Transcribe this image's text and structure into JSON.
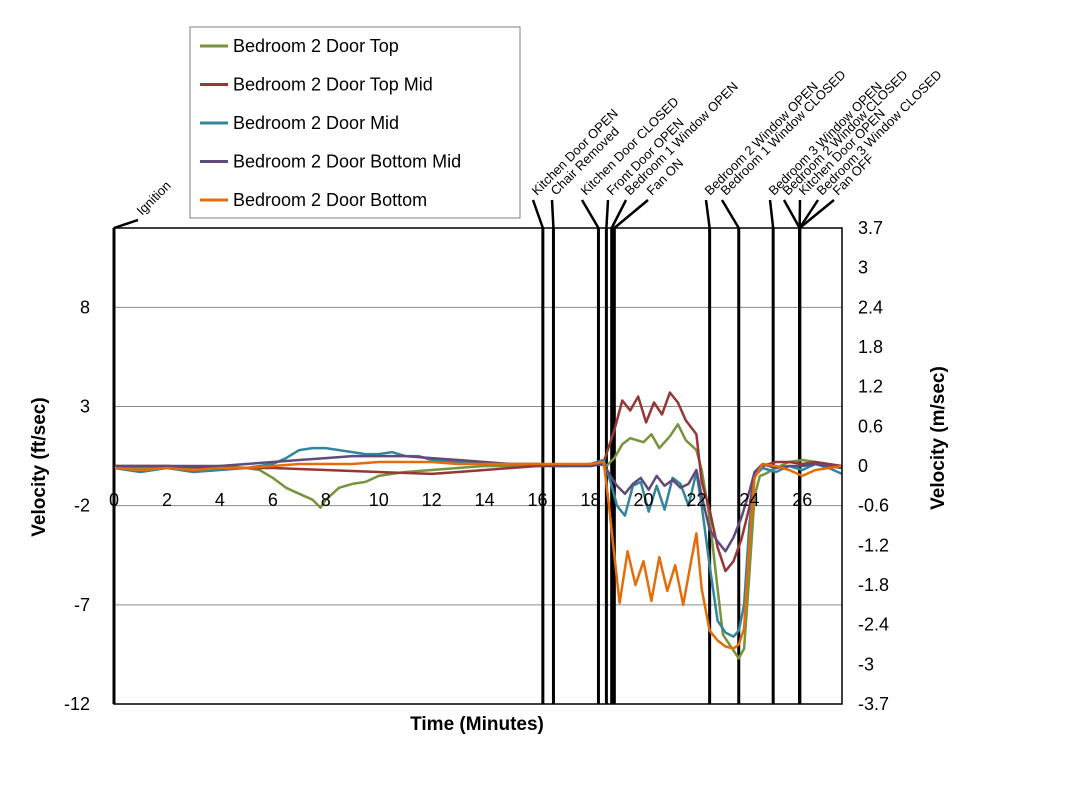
{
  "chart_data": {
    "type": "line",
    "title": "",
    "xlabel": "Time (Minutes)",
    "ylabel_left": "Velocity (ft/sec)",
    "ylabel_right": "Velocity (m/sec)",
    "xlim": [
      0,
      27.5
    ],
    "ylim_left": [
      -12,
      12
    ],
    "ylim_right": [
      -3.7,
      3.7
    ],
    "x_ticks": [
      0,
      2,
      4,
      6,
      8,
      10,
      12,
      14,
      16,
      18,
      20,
      22,
      24,
      26
    ],
    "y_ticks_left": [
      -12,
      -7,
      -2,
      3,
      8
    ],
    "y_ticks_right": [
      "3.7",
      "3",
      "2.4",
      "1.8",
      "1.2",
      "0.6",
      "0",
      "-0.6",
      "-1.2",
      "-1.8",
      "-2.4",
      "-3",
      "-3.7"
    ],
    "grid": "horizontal",
    "legend_position": "top-left",
    "events": [
      {
        "time": 0,
        "label": "Ignition"
      },
      {
        "time": 16.2,
        "label": "Kitchen Door OPEN"
      },
      {
        "time": 16.6,
        "label": "Chair Removed"
      },
      {
        "time": 18.3,
        "label": "Kitchen Door CLOSED"
      },
      {
        "time": 18.6,
        "label": "Front Door OPEN"
      },
      {
        "time": 18.8,
        "label": "Bedroom 1 Window OPEN"
      },
      {
        "time": 18.9,
        "label": "Fan ON"
      },
      {
        "time": 22.5,
        "label": "Bedroom 2 Window OPEN"
      },
      {
        "time": 23.6,
        "label": "Bedroom 1 Window CLOSED"
      },
      {
        "time": 24.9,
        "label": "Bedroom 3 Window OPEN"
      },
      {
        "time": 25.9,
        "label": "Bedroom 2 Window CLOSED"
      },
      {
        "time": 25.9,
        "label": "Kitchen Door OPEN"
      },
      {
        "time": 25.9,
        "label": "Bedroom 3 Window CLOSED"
      },
      {
        "time": 25.9,
        "label": "Fan OFF"
      }
    ],
    "series": [
      {
        "name": "Bedroom 2 Door Top",
        "color": "#77933c",
        "points": [
          [
            0,
            0
          ],
          [
            1,
            -0.1
          ],
          [
            2,
            0
          ],
          [
            3,
            -0.1
          ],
          [
            4,
            0
          ],
          [
            5,
            -0.1
          ],
          [
            5.5,
            -0.2
          ],
          [
            6,
            -0.6
          ],
          [
            6.5,
            -1.1
          ],
          [
            7,
            -1.4
          ],
          [
            7.5,
            -1.7
          ],
          [
            7.8,
            -2.1
          ],
          [
            8,
            -1.7
          ],
          [
            8.5,
            -1.1
          ],
          [
            9,
            -0.9
          ],
          [
            9.5,
            -0.8
          ],
          [
            10,
            -0.5
          ],
          [
            10.5,
            -0.4
          ],
          [
            11,
            -0.3
          ],
          [
            12,
            -0.2
          ],
          [
            13,
            -0.1
          ],
          [
            14,
            0
          ],
          [
            15,
            0
          ],
          [
            16,
            0
          ],
          [
            17,
            0
          ],
          [
            18,
            0
          ],
          [
            18.3,
            0.1
          ],
          [
            18.6,
            0
          ],
          [
            18.9,
            0.4
          ],
          [
            19.2,
            1.1
          ],
          [
            19.5,
            1.4
          ],
          [
            20,
            1.2
          ],
          [
            20.3,
            1.6
          ],
          [
            20.6,
            0.9
          ],
          [
            21,
            1.5
          ],
          [
            21.3,
            2.1
          ],
          [
            21.6,
            1.3
          ],
          [
            22,
            0.8
          ],
          [
            22.2,
            -0.2
          ],
          [
            22.5,
            -2.6
          ],
          [
            22.7,
            -5.0
          ],
          [
            23.0,
            -8.5
          ],
          [
            23.4,
            -9.3
          ],
          [
            23.6,
            -9.7
          ],
          [
            23.8,
            -9.2
          ],
          [
            24.0,
            -5.5
          ],
          [
            24.2,
            -1.5
          ],
          [
            24.4,
            -0.5
          ],
          [
            24.6,
            -0.4
          ],
          [
            25,
            -0.1
          ],
          [
            25.5,
            0.2
          ],
          [
            26,
            0.3
          ],
          [
            26.5,
            0.2
          ],
          [
            27,
            0
          ],
          [
            27.5,
            -0.1
          ]
        ]
      },
      {
        "name": "Bedroom 2 Door Top Mid",
        "color": "#953735",
        "points": [
          [
            0,
            0
          ],
          [
            2,
            0
          ],
          [
            4,
            -0.1
          ],
          [
            6,
            -0.1
          ],
          [
            8,
            -0.2
          ],
          [
            10,
            -0.3
          ],
          [
            12,
            -0.4
          ],
          [
            13,
            -0.3
          ],
          [
            14,
            -0.2
          ],
          [
            15,
            -0.1
          ],
          [
            16,
            0
          ],
          [
            17,
            0
          ],
          [
            18,
            0.1
          ],
          [
            18.5,
            0.2
          ],
          [
            18.9,
            1.8
          ],
          [
            19.2,
            3.3
          ],
          [
            19.5,
            2.8
          ],
          [
            19.8,
            3.5
          ],
          [
            20.1,
            2.2
          ],
          [
            20.4,
            3.2
          ],
          [
            20.7,
            2.6
          ],
          [
            21,
            3.7
          ],
          [
            21.3,
            3.2
          ],
          [
            21.6,
            2.3
          ],
          [
            22,
            1.6
          ],
          [
            22.2,
            -0.8
          ],
          [
            22.5,
            -2.2
          ],
          [
            22.8,
            -4.1
          ],
          [
            23.1,
            -5.3
          ],
          [
            23.4,
            -4.8
          ],
          [
            23.7,
            -3.7
          ],
          [
            24,
            -2.1
          ],
          [
            24.2,
            -0.5
          ],
          [
            24.5,
            0
          ],
          [
            25,
            0.2
          ],
          [
            25.5,
            0.2
          ],
          [
            26,
            0.1
          ],
          [
            26.5,
            0.2
          ],
          [
            27,
            0.1
          ],
          [
            27.5,
            0
          ]
        ]
      },
      {
        "name": "Bedroom 2 Door Mid",
        "color": "#31859c",
        "points": [
          [
            0,
            -0.1
          ],
          [
            1,
            -0.3
          ],
          [
            2,
            -0.1
          ],
          [
            3,
            -0.3
          ],
          [
            4,
            -0.2
          ],
          [
            5,
            -0.1
          ],
          [
            6,
            0.1
          ],
          [
            6.5,
            0.4
          ],
          [
            7,
            0.8
          ],
          [
            7.5,
            0.9
          ],
          [
            8,
            0.9
          ],
          [
            8.5,
            0.8
          ],
          [
            9,
            0.7
          ],
          [
            9.5,
            0.6
          ],
          [
            10,
            0.6
          ],
          [
            10.5,
            0.7
          ],
          [
            11,
            0.5
          ],
          [
            11.5,
            0.5
          ],
          [
            12,
            0.3
          ],
          [
            13,
            0.2
          ],
          [
            14,
            0.1
          ],
          [
            15,
            0.1
          ],
          [
            16,
            0.1
          ],
          [
            17,
            0
          ],
          [
            18,
            0.1
          ],
          [
            18.5,
            0.3
          ],
          [
            18.8,
            -1.0
          ],
          [
            19,
            -2.0
          ],
          [
            19.3,
            -2.5
          ],
          [
            19.6,
            -1.0
          ],
          [
            19.9,
            -0.8
          ],
          [
            20.2,
            -2.3
          ],
          [
            20.5,
            -1.0
          ],
          [
            20.8,
            -2.2
          ],
          [
            21.1,
            -0.6
          ],
          [
            21.4,
            -0.9
          ],
          [
            21.7,
            -2.0
          ],
          [
            22,
            -0.3
          ],
          [
            22.2,
            -2.0
          ],
          [
            22.5,
            -5.0
          ],
          [
            22.8,
            -7.8
          ],
          [
            23.1,
            -8.4
          ],
          [
            23.4,
            -8.6
          ],
          [
            23.6,
            -8.3
          ],
          [
            23.8,
            -7.0
          ],
          [
            24.0,
            -3.0
          ],
          [
            24.2,
            -0.5
          ],
          [
            24.5,
            -0.1
          ],
          [
            25,
            -0.3
          ],
          [
            25.5,
            0
          ],
          [
            26,
            -0.2
          ],
          [
            26.5,
            0.1
          ],
          [
            27,
            -0.1
          ],
          [
            27.5,
            -0.4
          ]
        ]
      },
      {
        "name": "Bedroom 2 Door Bottom Mid",
        "color": "#604a7b",
        "points": [
          [
            0,
            0
          ],
          [
            2,
            0
          ],
          [
            4,
            0
          ],
          [
            5,
            0.1
          ],
          [
            6,
            0.2
          ],
          [
            7,
            0.3
          ],
          [
            8,
            0.4
          ],
          [
            9,
            0.5
          ],
          [
            10,
            0.5
          ],
          [
            11,
            0.5
          ],
          [
            12,
            0.4
          ],
          [
            13,
            0.3
          ],
          [
            14,
            0.2
          ],
          [
            15,
            0.1
          ],
          [
            16,
            0.1
          ],
          [
            17,
            0
          ],
          [
            18,
            0
          ],
          [
            18.5,
            0.1
          ],
          [
            18.8,
            -0.6
          ],
          [
            19,
            -1.0
          ],
          [
            19.3,
            -1.4
          ],
          [
            19.6,
            -0.9
          ],
          [
            19.9,
            -0.6
          ],
          [
            20.2,
            -1.2
          ],
          [
            20.5,
            -0.5
          ],
          [
            20.8,
            -1.0
          ],
          [
            21.1,
            -0.7
          ],
          [
            21.4,
            -1.1
          ],
          [
            21.7,
            -0.9
          ],
          [
            22,
            -0.2
          ],
          [
            22.2,
            -1.5
          ],
          [
            22.5,
            -3.2
          ],
          [
            22.8,
            -3.8
          ],
          [
            23.1,
            -4.3
          ],
          [
            23.4,
            -3.6
          ],
          [
            23.7,
            -2.6
          ],
          [
            24,
            -1.3
          ],
          [
            24.2,
            -0.3
          ],
          [
            24.5,
            0.1
          ],
          [
            25,
            -0.1
          ],
          [
            25.5,
            0
          ],
          [
            26,
            0
          ],
          [
            26.5,
            0.1
          ],
          [
            27,
            0
          ],
          [
            27.5,
            -0.1
          ]
        ]
      },
      {
        "name": "Bedroom 2 Door Bottom",
        "color": "#e46c0a",
        "points": [
          [
            0,
            -0.1
          ],
          [
            1,
            -0.2
          ],
          [
            2,
            -0.1
          ],
          [
            3,
            -0.2
          ],
          [
            4,
            -0.1
          ],
          [
            5,
            -0.1
          ],
          [
            6,
            0
          ],
          [
            7,
            0.1
          ],
          [
            8,
            0.1
          ],
          [
            9,
            0.1
          ],
          [
            10,
            0.2
          ],
          [
            11,
            0.2
          ],
          [
            12,
            0.2
          ],
          [
            13,
            0.1
          ],
          [
            14,
            0.1
          ],
          [
            15,
            0.1
          ],
          [
            16,
            0.1
          ],
          [
            17,
            0.1
          ],
          [
            18,
            0.1
          ],
          [
            18.5,
            0.2
          ],
          [
            18.7,
            -2.0
          ],
          [
            18.9,
            -4.5
          ],
          [
            19.1,
            -6.9
          ],
          [
            19.4,
            -4.3
          ],
          [
            19.7,
            -6.0
          ],
          [
            20,
            -4.8
          ],
          [
            20.3,
            -6.8
          ],
          [
            20.6,
            -4.6
          ],
          [
            20.9,
            -6.3
          ],
          [
            21.2,
            -5.0
          ],
          [
            21.5,
            -7.0
          ],
          [
            21.8,
            -4.8
          ],
          [
            22.0,
            -3.4
          ],
          [
            22.2,
            -6.2
          ],
          [
            22.5,
            -8.3
          ],
          [
            22.8,
            -8.8
          ],
          [
            23.1,
            -9.1
          ],
          [
            23.4,
            -9.2
          ],
          [
            23.6,
            -9.0
          ],
          [
            23.8,
            -8.2
          ],
          [
            24,
            -4.0
          ],
          [
            24.2,
            -0.6
          ],
          [
            24.5,
            0.1
          ],
          [
            25,
            0
          ],
          [
            25.5,
            -0.2
          ],
          [
            26,
            -0.5
          ],
          [
            26.5,
            -0.2
          ],
          [
            27,
            -0.1
          ],
          [
            27.5,
            0
          ]
        ]
      }
    ]
  }
}
